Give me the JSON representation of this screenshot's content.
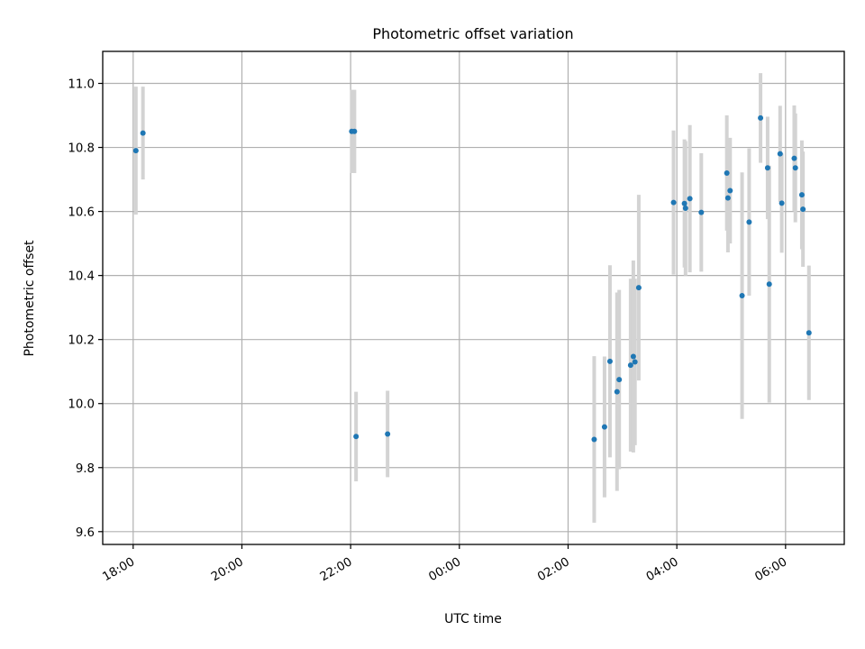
{
  "chart_data": {
    "type": "scatter",
    "title": "Photometric offset variation",
    "xlabel": "UTC time",
    "ylabel": "Photometric offset",
    "x_unit": "hours since 18:00 UTC",
    "xlim": [
      -0.56,
      13.08
    ],
    "ylim": [
      9.56,
      11.1
    ],
    "grid": true,
    "x_ticks": [
      {
        "value": 0,
        "label": "18:00"
      },
      {
        "value": 2,
        "label": "20:00"
      },
      {
        "value": 4,
        "label": "22:00"
      },
      {
        "value": 6,
        "label": "00:00"
      },
      {
        "value": 8,
        "label": "02:00"
      },
      {
        "value": 10,
        "label": "04:00"
      },
      {
        "value": 12,
        "label": "06:00"
      }
    ],
    "y_ticks": [
      {
        "value": 9.6,
        "label": "9.6"
      },
      {
        "value": 9.8,
        "label": "9.8"
      },
      {
        "value": 10.0,
        "label": "10.0"
      },
      {
        "value": 10.2,
        "label": "10.2"
      },
      {
        "value": 10.4,
        "label": "10.4"
      },
      {
        "value": 10.6,
        "label": "10.6"
      },
      {
        "value": 10.8,
        "label": "10.8"
      },
      {
        "value": 11.0,
        "label": "11.0"
      }
    ],
    "colors": {
      "point": "#1f77b4",
      "errorbar": "#d3d3d3"
    },
    "series": [
      {
        "name": "Photometric offset",
        "points": [
          {
            "x": 0.05,
            "y": 10.79,
            "err": 0.2
          },
          {
            "x": 0.18,
            "y": 10.845,
            "err": 0.145
          },
          {
            "x": 4.02,
            "y": 10.85,
            "err": 0.13
          },
          {
            "x": 4.07,
            "y": 10.85,
            "err": 0.13
          },
          {
            "x": 4.1,
            "y": 9.897,
            "err": 0.14
          },
          {
            "x": 4.68,
            "y": 9.905,
            "err": 0.135
          },
          {
            "x": 8.48,
            "y": 9.888,
            "err": 0.26
          },
          {
            "x": 8.67,
            "y": 9.927,
            "err": 0.22
          },
          {
            "x": 8.77,
            "y": 10.132,
            "err": 0.3
          },
          {
            "x": 8.9,
            "y": 10.037,
            "err": 0.31
          },
          {
            "x": 8.94,
            "y": 10.075,
            "err": 0.28
          },
          {
            "x": 9.15,
            "y": 10.12,
            "err": 0.27
          },
          {
            "x": 9.2,
            "y": 10.147,
            "err": 0.3
          },
          {
            "x": 9.23,
            "y": 10.13,
            "err": 0.26
          },
          {
            "x": 9.3,
            "y": 10.362,
            "err": 0.29
          },
          {
            "x": 9.94,
            "y": 10.628,
            "err": 0.225
          },
          {
            "x": 10.14,
            "y": 10.625,
            "err": 0.2
          },
          {
            "x": 10.16,
            "y": 10.61,
            "err": 0.21
          },
          {
            "x": 10.24,
            "y": 10.64,
            "err": 0.23
          },
          {
            "x": 10.45,
            "y": 10.597,
            "err": 0.185
          },
          {
            "x": 10.92,
            "y": 10.72,
            "err": 0.18
          },
          {
            "x": 10.94,
            "y": 10.642,
            "err": 0.17
          },
          {
            "x": 10.98,
            "y": 10.665,
            "err": 0.165
          },
          {
            "x": 11.2,
            "y": 10.337,
            "err": 0.385
          },
          {
            "x": 11.33,
            "y": 10.567,
            "err": 0.23
          },
          {
            "x": 11.54,
            "y": 10.892,
            "err": 0.14
          },
          {
            "x": 11.67,
            "y": 10.736,
            "err": 0.16
          },
          {
            "x": 11.7,
            "y": 10.373,
            "err": 0.37
          },
          {
            "x": 11.9,
            "y": 10.78,
            "err": 0.15
          },
          {
            "x": 11.93,
            "y": 10.626,
            "err": 0.155
          },
          {
            "x": 12.16,
            "y": 10.766,
            "err": 0.165
          },
          {
            "x": 12.18,
            "y": 10.736,
            "err": 0.17
          },
          {
            "x": 12.3,
            "y": 10.652,
            "err": 0.17
          },
          {
            "x": 12.32,
            "y": 10.607,
            "err": 0.18
          },
          {
            "x": 12.43,
            "y": 10.221,
            "err": 0.21
          }
        ]
      }
    ]
  }
}
